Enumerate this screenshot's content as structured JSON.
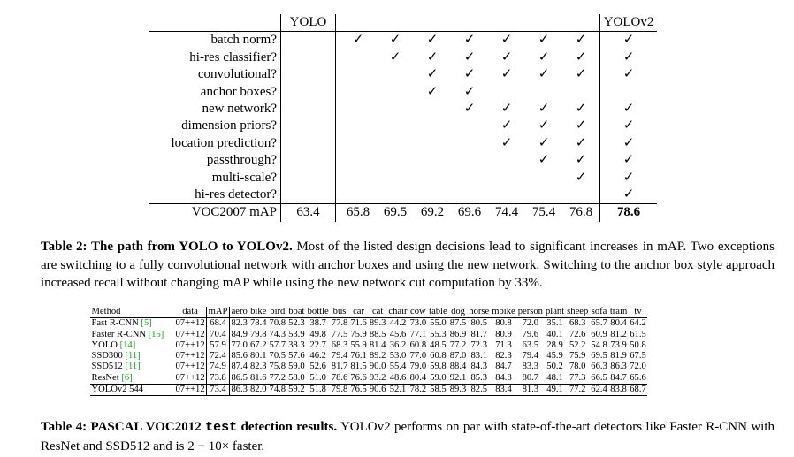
{
  "table2": {
    "header_yolo": "YOLO",
    "header_yolov2": "YOLOv2",
    "rows": [
      {
        "label": "batch norm?",
        "yolo": "",
        "steps": [
          "✓",
          "✓",
          "✓",
          "✓",
          "✓",
          "✓",
          "✓"
        ],
        "v2": "✓"
      },
      {
        "label": "hi-res classifier?",
        "yolo": "",
        "steps": [
          "",
          "✓",
          "✓",
          "✓",
          "✓",
          "✓",
          "✓"
        ],
        "v2": "✓"
      },
      {
        "label": "convolutional?",
        "yolo": "",
        "steps": [
          "",
          "",
          "✓",
          "✓",
          "✓",
          "✓",
          "✓"
        ],
        "v2": "✓"
      },
      {
        "label": "anchor boxes?",
        "yolo": "",
        "steps": [
          "",
          "",
          "✓",
          "✓",
          "",
          "",
          ""
        ],
        "v2": ""
      },
      {
        "label": "new network?",
        "yolo": "",
        "steps": [
          "",
          "",
          "",
          "✓",
          "✓",
          "✓",
          "✓"
        ],
        "v2": "✓"
      },
      {
        "label": "dimension priors?",
        "yolo": "",
        "steps": [
          "",
          "",
          "",
          "",
          "✓",
          "✓",
          "✓"
        ],
        "v2": "✓"
      },
      {
        "label": "location prediction?",
        "yolo": "",
        "steps": [
          "",
          "",
          "",
          "",
          "✓",
          "✓",
          "✓"
        ],
        "v2": "✓"
      },
      {
        "label": "passthrough?",
        "yolo": "",
        "steps": [
          "",
          "",
          "",
          "",
          "",
          "✓",
          "✓"
        ],
        "v2": "✓"
      },
      {
        "label": "multi-scale?",
        "yolo": "",
        "steps": [
          "",
          "",
          "",
          "",
          "",
          "",
          "✓"
        ],
        "v2": "✓"
      },
      {
        "label": "hi-res detector?",
        "yolo": "",
        "steps": [
          "",
          "",
          "",
          "",
          "",
          "",
          ""
        ],
        "v2": "✓"
      }
    ],
    "map_row": {
      "label": "VOC2007 mAP",
      "yolo": "63.4",
      "steps": [
        "65.8",
        "69.5",
        "69.2",
        "69.6",
        "74.4",
        "75.4",
        "76.8"
      ],
      "v2": "78.6"
    }
  },
  "caption2": {
    "lead": "Table 2: The path from YOLO to YOLOv2.",
    "body": " Most of the listed design decisions lead to significant increases in mAP. Two exceptions are switching to a fully convolutional network with anchor boxes and using the new network. Switching to the anchor box style approach increased recall without changing mAP while using the new network cut computation by 33%."
  },
  "table4": {
    "headers": [
      "Method",
      "data",
      "mAP",
      "aero",
      "bike",
      "bird",
      "boat",
      "bottle",
      "bus",
      "car",
      "cat",
      "chair",
      "cow",
      "table",
      "dog",
      "horse",
      "mbike",
      "person",
      "plant",
      "sheep",
      "sofa",
      "train",
      "tv"
    ],
    "rows": [
      {
        "method": "Fast R-CNN ",
        "ref": "[5]",
        "data": "07++12",
        "values": [
          "68.4",
          "82.3",
          "78.4",
          "70.8",
          "52.3",
          "38.7",
          "77.8",
          "71.6",
          "89.3",
          "44.2",
          "73.0",
          "55.0",
          "87.5",
          "80.5",
          "80.8",
          "72.0",
          "35.1",
          "68.3",
          "65.7",
          "80.4",
          "64.2"
        ]
      },
      {
        "method": "Faster R-CNN ",
        "ref": "[15]",
        "data": "07++12",
        "values": [
          "70.4",
          "84.9",
          "79.8",
          "74.3",
          "53.9",
          "49.8",
          "77.5",
          "75.9",
          "88.5",
          "45.6",
          "77.1",
          "55.3",
          "86.9",
          "81.7",
          "80.9",
          "79.6",
          "40.1",
          "72.6",
          "60.9",
          "81.2",
          "61.5"
        ]
      },
      {
        "method": "YOLO ",
        "ref": "[14]",
        "data": "07++12",
        "values": [
          "57.9",
          "77.0",
          "67.2",
          "57.7",
          "38.3",
          "22.7",
          "68.3",
          "55.9",
          "81.4",
          "36.2",
          "60.8",
          "48.5",
          "77.2",
          "72.3",
          "71.3",
          "63.5",
          "28.9",
          "52.2",
          "54.8",
          "73.9",
          "50.8"
        ]
      },
      {
        "method": "SSD300 ",
        "ref": "[11]",
        "data": "07++12",
        "values": [
          "72.4",
          "85.6",
          "80.1",
          "70.5",
          "57.6",
          "46.2",
          "79.4",
          "76.1",
          "89.2",
          "53.0",
          "77.0",
          "60.8",
          "87.0",
          "83.1",
          "82.3",
          "79.4",
          "45.9",
          "75.9",
          "69.5",
          "81.9",
          "67.5"
        ]
      },
      {
        "method": "SSD512 ",
        "ref": "[11]",
        "data": "07++12",
        "values": [
          "74.9",
          "87.4",
          "82.3",
          "75.8",
          "59.0",
          "52.6",
          "81.7",
          "81.5",
          "90.0",
          "55.4",
          "79.0",
          "59.8",
          "88.4",
          "84.3",
          "84.7",
          "83.3",
          "50.2",
          "78.0",
          "66.3",
          "86.3",
          "72.0"
        ]
      },
      {
        "method": "ResNet ",
        "ref": "[6]",
        "data": "07++12",
        "values": [
          "73.8",
          "86.5",
          "81.6",
          "77.2",
          "58.0",
          "51.0",
          "78.6",
          "76.6",
          "93.2",
          "48.6",
          "80.4",
          "59.0",
          "92.1",
          "85.3",
          "84.8",
          "80.7",
          "48.1",
          "77.3",
          "66.5",
          "84.7",
          "65.6"
        ]
      },
      {
        "method": "YOLOv2 544",
        "ref": "",
        "data": "07++12",
        "values": [
          "73.4",
          "86.3",
          "82.0",
          "74.8",
          "59.2",
          "51.8",
          "79.8",
          "76.5",
          "90.6",
          "52.1",
          "78.2",
          "58.5",
          "89.3",
          "82.5",
          "83.4",
          "81.3",
          "49.1",
          "77.2",
          "62.4",
          "83.8",
          "68.7"
        ]
      }
    ]
  },
  "caption4": {
    "lead_a": "Table 4: PASCAL VOC2012 ",
    "lead_mono": "test",
    "lead_b": " detection results.",
    "body": " YOLOv2 performs on par with state-of-the-art detectors like Faster R-CNN with ResNet and SSD512 and is 2 − 10× faster."
  }
}
